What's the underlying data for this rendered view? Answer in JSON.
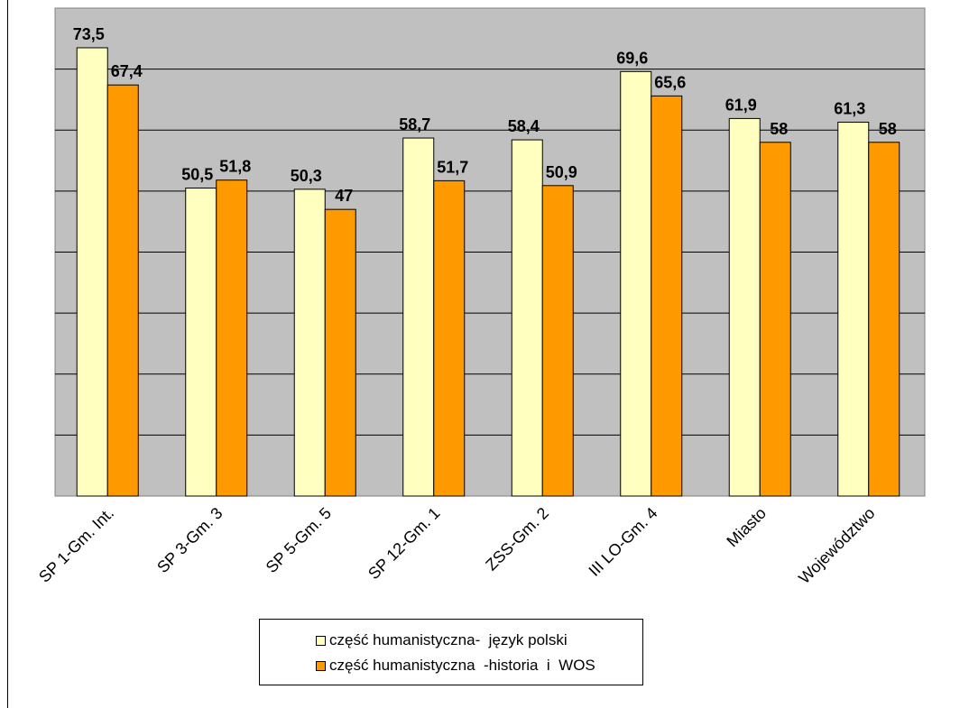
{
  "chart_data": {
    "type": "bar",
    "categories": [
      "SP 1-Gm. Int.",
      "SP 3-Gm. 3",
      "SP 5-Gm. 5",
      "SP 12-Gm. 1",
      "ZSS-Gm. 2",
      "III LO-Gm. 4",
      "Miasto",
      "Województwo"
    ],
    "series": [
      {
        "name": "część humanistyczna-  język polski",
        "values": [
          73.5,
          50.5,
          50.3,
          58.7,
          58.4,
          69.6,
          61.9,
          61.3
        ],
        "labels": [
          "73,5",
          "50,5",
          "50,3",
          "58,7",
          "58,4",
          "69,6",
          "61,9",
          "61,3"
        ],
        "color": "#FFFFC0"
      },
      {
        "name": "część humanistyczna  -historia  i  WOS",
        "values": [
          67.4,
          51.8,
          47,
          51.7,
          50.9,
          65.6,
          58,
          58
        ],
        "labels": [
          "67,4",
          "51,8",
          "47",
          "51,7",
          "50,9",
          "65,6",
          "58",
          "58"
        ],
        "color": "#FF9900"
      }
    ],
    "ylim": [
      0,
      80
    ],
    "gridlines": true,
    "y_ticks_visible": false,
    "plot_background": "#C0C0C0",
    "legend_position": "bottom"
  }
}
